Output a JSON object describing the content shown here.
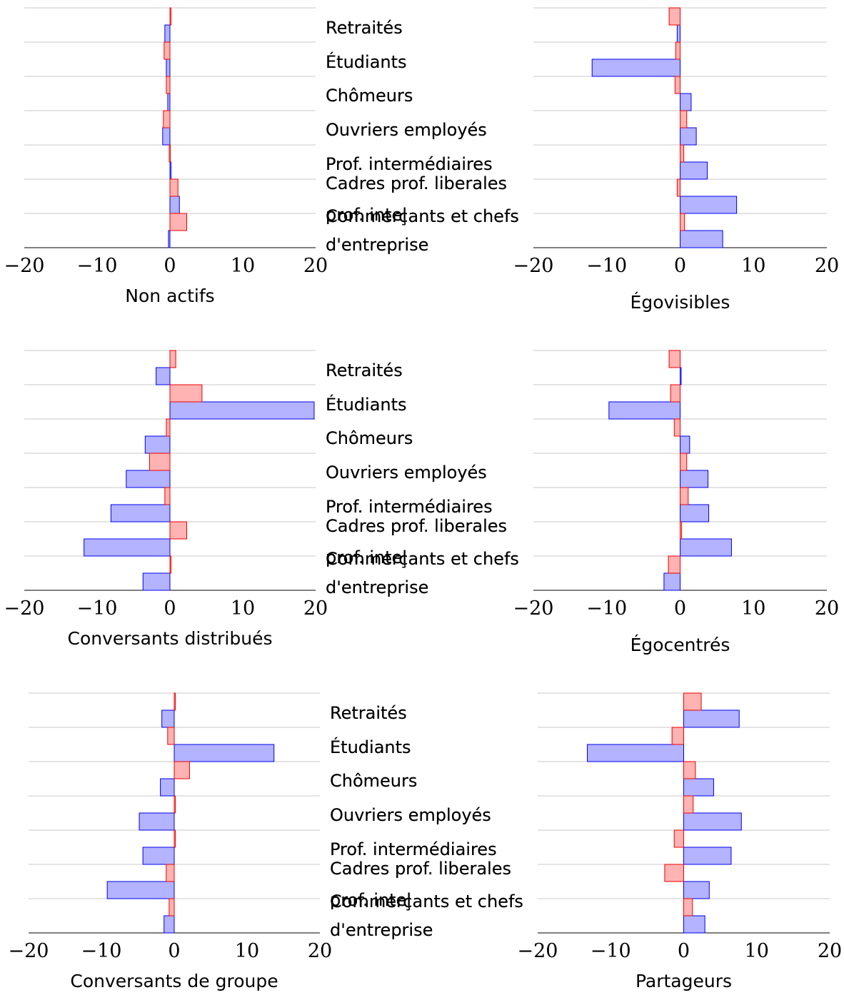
{
  "colors": {
    "series_a_fill": "#b3b3ff",
    "series_a_stroke": "#0000ee",
    "series_b_fill": "#ffb3b3",
    "series_b_stroke": "#ee0000"
  },
  "chart_data": [
    {
      "type": "bar",
      "orientation": "horizontal",
      "title": "Non actifs",
      "categories": [
        "Retraités",
        "Étudiants",
        "Chômeurs",
        "Ouvriers employés",
        "Prof. intermédiaires",
        "Cadres  prof. liberales prof. intel",
        "Commerçants et chefs d'entreprise"
      ],
      "xlim": [
        -20,
        20
      ],
      "xticks": [
        "−20",
        "−10",
        "0",
        "10",
        "20"
      ],
      "series": [
        {
          "color": "#b3b3ff",
          "values": [
            -0.7,
            -0.5,
            -0.3,
            -1.0,
            0.1,
            1.3,
            -0.2
          ]
        },
        {
          "color": "#ffb3b3",
          "values": [
            0.1,
            -0.8,
            -0.5,
            -0.9,
            -0.1,
            1.1,
            2.3
          ]
        }
      ]
    },
    {
      "type": "bar",
      "orientation": "horizontal",
      "title": "Égovisibles",
      "categories": [
        "Retraités",
        "Étudiants",
        "Chômeurs",
        "Ouvriers employés",
        "Prof. intermédiaires",
        "Cadres  prof. liberales prof. intel",
        "Commerçants et chefs d'entreprise"
      ],
      "xlim": [
        -20,
        20
      ],
      "xticks": [
        "−20",
        "−10",
        "0",
        "10",
        "20"
      ],
      "series": [
        {
          "color": "#b3b3ff",
          "values": [
            -0.4,
            -12.0,
            1.5,
            2.2,
            3.7,
            7.7,
            5.8
          ]
        },
        {
          "color": "#ffb3b3",
          "values": [
            -1.5,
            -0.6,
            -0.7,
            0.9,
            0.5,
            -0.4,
            0.6
          ]
        }
      ]
    },
    {
      "type": "bar",
      "orientation": "horizontal",
      "title": "Conversants distribués",
      "categories": [
        "Retraités",
        "Étudiants",
        "Chômeurs",
        "Ouvriers employés",
        "Prof. intermédiaires",
        "Cadres  prof. liberales prof. intel",
        "Commerçants et chefs d'entreprise"
      ],
      "xlim": [
        -20,
        20
      ],
      "xticks": [
        "−20",
        "−10",
        "0",
        "10",
        "20"
      ],
      "series": [
        {
          "color": "#b3b3ff",
          "values": [
            -1.9,
            19.8,
            -3.4,
            -6.0,
            -8.1,
            -11.8,
            -3.7
          ]
        },
        {
          "color": "#ffb3b3",
          "values": [
            0.8,
            4.4,
            -0.5,
            -2.8,
            -0.7,
            2.3,
            0.1
          ]
        }
      ]
    },
    {
      "type": "bar",
      "orientation": "horizontal",
      "title": "Égocentrés",
      "categories": [
        "Retraités",
        "Étudiants",
        "Chômeurs",
        "Ouvriers employés",
        "Prof. intermédiaires",
        "Cadres  prof. liberales prof. intel",
        "Commerçants et chefs d'entreprise"
      ],
      "xlim": [
        -20,
        20
      ],
      "xticks": [
        "−20",
        "−10",
        "0",
        "10",
        "20"
      ],
      "series": [
        {
          "color": "#b3b3ff",
          "values": [
            0.1,
            -9.7,
            1.3,
            3.8,
            3.9,
            7.0,
            -2.2
          ]
        },
        {
          "color": "#ffb3b3",
          "values": [
            -1.5,
            -1.3,
            -0.8,
            0.9,
            1.1,
            0.2,
            -1.6
          ]
        }
      ]
    },
    {
      "type": "bar",
      "orientation": "horizontal",
      "title": "Conversants de groupe",
      "categories": [
        "Retraités",
        "Étudiants",
        "Chômeurs",
        "Ouvriers employés",
        "Prof. intermédiaires",
        "Cadres  prof. liberales prof. intel",
        "Commerçants et chefs d'entreprise"
      ],
      "xlim": [
        -20,
        20
      ],
      "xticks": [
        "−20",
        "−10",
        "0",
        "10",
        "20"
      ],
      "series": [
        {
          "color": "#b3b3ff",
          "values": [
            -1.7,
            13.7,
            -1.9,
            -4.8,
            -4.3,
            -9.2,
            -1.4
          ]
        },
        {
          "color": "#ffb3b3",
          "values": [
            0.1,
            -0.9,
            2.1,
            0.1,
            0.0,
            -1.1,
            -0.7
          ]
        }
      ]
    },
    {
      "type": "bar",
      "orientation": "horizontal",
      "title": "Partageurs",
      "categories": [
        "Retraités",
        "Étudiants",
        "Chômeurs",
        "Ouvriers employés",
        "Prof. intermédiaires",
        "Cadres  prof. liberales prof. intel",
        "Commerçants et chefs d'entreprise"
      ],
      "xlim": [
        -20,
        20
      ],
      "xticks": [
        "−20",
        "−10",
        "0",
        "10",
        "20"
      ],
      "series": [
        {
          "color": "#b3b3ff",
          "values": [
            7.6,
            -13.2,
            4.1,
            7.9,
            6.5,
            3.5,
            2.9
          ]
        },
        {
          "color": "#ffb3b3",
          "values": [
            2.4,
            -1.6,
            1.6,
            1.3,
            -1.3,
            -2.6,
            1.2
          ]
        }
      ]
    }
  ]
}
